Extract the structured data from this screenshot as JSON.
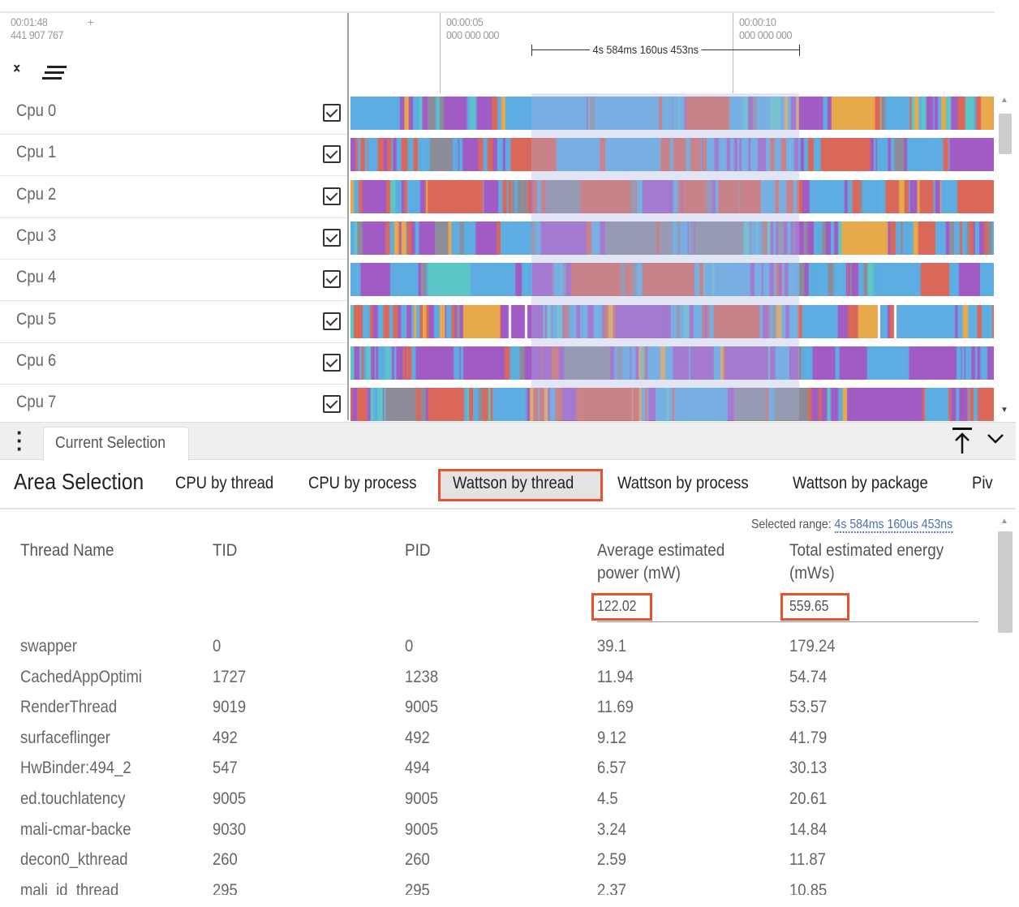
{
  "timeline": {
    "offset_time": "00:01:48",
    "offset_ns": "441 907 767",
    "plus": "+",
    "ticks": [
      {
        "time": "00:00:05",
        "ns": "000 000 000"
      },
      {
        "time": "00:00:10",
        "ns": "000 000 000"
      }
    ],
    "span_label": "4s 584ms 160us 453ns"
  },
  "tracks": [
    {
      "label": "Cpu 0",
      "checked": true
    },
    {
      "label": "Cpu 1",
      "checked": true
    },
    {
      "label": "Cpu 2",
      "checked": true
    },
    {
      "label": "Cpu 3",
      "checked": true
    },
    {
      "label": "Cpu 4",
      "checked": true
    },
    {
      "label": "Cpu 5",
      "checked": true
    },
    {
      "label": "Cpu 6",
      "checked": true
    },
    {
      "label": "Cpu 7",
      "checked": true
    }
  ],
  "colors": {
    "accent_highlight": "#e8522f",
    "blue": "#5dade2",
    "purple": "#a05bc4",
    "red": "#d9685a",
    "orange": "#e8a94a",
    "grey": "#8c8c99",
    "teal": "#5cc6c6",
    "link": "#4a6fb5"
  },
  "panel": {
    "tab": "Current Selection",
    "area_title": "Area Selection",
    "subtabs": [
      "CPU by thread",
      "CPU by process",
      "Wattson by thread",
      "Wattson by process",
      "Wattson by package",
      "Piv"
    ],
    "active_subtab": "Wattson by thread",
    "selected_range_label": "Selected range:",
    "selected_range": "4s 584ms 160us 453ns"
  },
  "table": {
    "headers": [
      "Thread Name",
      "TID",
      "PID",
      "Average estimated power (mW)",
      "Total estimated energy (mWs)"
    ],
    "totals": {
      "avg": "122.02",
      "total": "559.65"
    },
    "rows": [
      [
        "swapper",
        "0",
        "0",
        "39.1",
        "179.24"
      ],
      [
        "CachedAppOptimi",
        "1727",
        "1238",
        "11.94",
        "54.74"
      ],
      [
        "RenderThread",
        "9019",
        "9005",
        "11.69",
        "53.57"
      ],
      [
        "surfaceflinger",
        "492",
        "492",
        "9.12",
        "41.79"
      ],
      [
        "HwBinder:494_2",
        "547",
        "494",
        "6.57",
        "30.13"
      ],
      [
        "ed.touchlatency",
        "9005",
        "9005",
        "4.5",
        "20.61"
      ],
      [
        "mali-cmar-backe",
        "9030",
        "9005",
        "3.24",
        "14.84"
      ],
      [
        "decon0_kthread",
        "260",
        "260",
        "2.59",
        "11.87"
      ],
      [
        "mali_id_thread",
        "295",
        "295",
        "2.37",
        "10.85"
      ]
    ]
  }
}
